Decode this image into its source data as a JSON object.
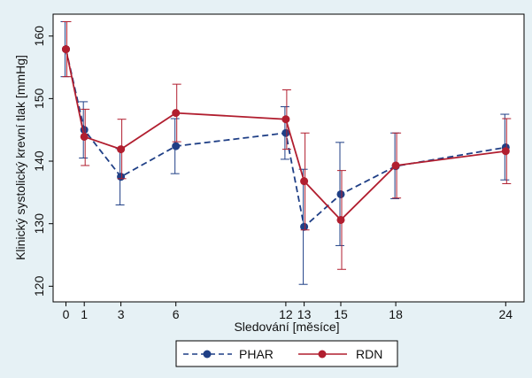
{
  "chart_data": {
    "type": "line",
    "title": "",
    "xlabel": "Sledování [měsíce]",
    "ylabel": "Klinický systolický krevní tlak [mmHg]",
    "xlim": [
      -0.7,
      25
    ],
    "ylim": [
      117.5,
      163.5
    ],
    "x": [
      0,
      1,
      3,
      6,
      12,
      13,
      15,
      18,
      24
    ],
    "x_ticks": [
      0,
      1,
      3,
      6,
      12,
      13,
      15,
      18,
      24
    ],
    "y_ticks": [
      120,
      130,
      140,
      150,
      160
    ],
    "grid": false,
    "legend_position": "bottom-center",
    "colors": {
      "background": "#e6f1f5",
      "PHAR": "#1f3f86",
      "RDN": "#b11e2f"
    },
    "series": [
      {
        "name": "PHAR",
        "line_style": "dashed",
        "values": [
          157.9,
          145.0,
          137.5,
          142.4,
          144.5,
          129.5,
          134.7,
          139.2,
          142.2
        ],
        "ci_low": [
          153.5,
          140.5,
          133.0,
          138.0,
          140.3,
          120.3,
          126.5,
          134.0,
          137.0
        ],
        "ci_high": [
          162.3,
          149.5,
          142.0,
          146.8,
          148.7,
          138.7,
          143.0,
          144.5,
          147.5
        ]
      },
      {
        "name": "RDN",
        "line_style": "solid",
        "values": [
          157.9,
          143.9,
          141.9,
          147.7,
          146.7,
          136.8,
          130.6,
          139.3,
          141.6
        ],
        "ci_low": [
          153.5,
          139.3,
          137.2,
          143.1,
          141.9,
          129.0,
          122.7,
          134.1,
          136.4
        ],
        "ci_high": [
          162.3,
          148.3,
          146.7,
          152.3,
          151.4,
          144.5,
          138.5,
          144.5,
          146.8
        ]
      }
    ]
  }
}
